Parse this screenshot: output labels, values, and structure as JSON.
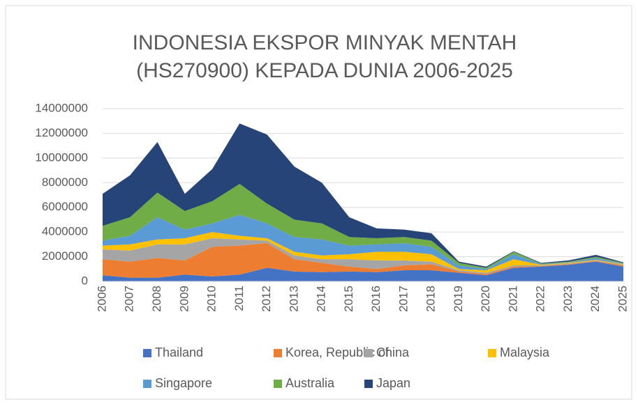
{
  "chart_data": {
    "type": "stacked_area",
    "title": [
      "INDONESIA EKSPOR MINYAK MENTAH",
      "(HS270900) KEPADA DUNIA 2006-2025"
    ],
    "categories": [
      "2006",
      "2007",
      "2008",
      "2009",
      "2010",
      "2011",
      "2012",
      "2013",
      "2014",
      "2015",
      "2016",
      "2017",
      "2018",
      "2019",
      "2020",
      "2021",
      "2022",
      "2023",
      "2024",
      "2025"
    ],
    "series": [
      {
        "name": "Thailand",
        "color": "#4472c4",
        "values": [
          500000,
          300000,
          300000,
          550000,
          400000,
          550000,
          1100000,
          800000,
          750000,
          800000,
          750000,
          900000,
          900000,
          700000,
          500000,
          1100000,
          1200000,
          1350000,
          1600000,
          1200000
        ]
      },
      {
        "name": "Korea, Republic of",
        "color": "#ed7d31",
        "values": [
          1300000,
          1300000,
          1600000,
          1150000,
          2400000,
          2350000,
          2000000,
          1000000,
          750000,
          400000,
          250000,
          400000,
          500000,
          100000,
          100000,
          100000,
          50000,
          50000,
          50000,
          100000
        ]
      },
      {
        "name": "China",
        "color": "#a5a5a5",
        "values": [
          800000,
          900000,
          1100000,
          1300000,
          700000,
          500000,
          200000,
          300000,
          300000,
          600000,
          700000,
          400000,
          200000,
          100000,
          100000,
          100000,
          50000,
          50000,
          50000,
          50000
        ]
      },
      {
        "name": "Malaysia",
        "color": "#ffc000",
        "values": [
          300000,
          500000,
          400000,
          500000,
          500000,
          300000,
          200000,
          300000,
          300000,
          400000,
          700000,
          700000,
          600000,
          100000,
          200000,
          500000,
          50000,
          50000,
          50000,
          50000
        ]
      },
      {
        "name": "Singapore",
        "color": "#5b9bd5",
        "values": [
          400000,
          700000,
          1800000,
          700000,
          700000,
          1700000,
          1200000,
          1200000,
          1300000,
          700000,
          600000,
          700000,
          600000,
          300000,
          100000,
          400000,
          50000,
          50000,
          150000,
          50000
        ]
      },
      {
        "name": "Australia",
        "color": "#70ad47",
        "values": [
          1200000,
          1500000,
          2000000,
          1500000,
          1800000,
          2500000,
          1600000,
          1400000,
          1300000,
          700000,
          500000,
          500000,
          500000,
          200000,
          100000,
          200000,
          50000,
          50000,
          100000,
          50000
        ]
      },
      {
        "name": "Japan",
        "color": "#264478",
        "values": [
          2600000,
          3400000,
          4100000,
          1400000,
          2600000,
          4900000,
          5600000,
          4300000,
          3300000,
          1600000,
          800000,
          600000,
          600000,
          100000,
          100000,
          50000,
          50000,
          100000,
          150000,
          50000
        ]
      }
    ],
    "ylim": [
      0,
      14000000
    ],
    "yticks": [
      0,
      2000000,
      4000000,
      6000000,
      8000000,
      10000000,
      12000000,
      14000000
    ],
    "grid": true,
    "legend": "bottom"
  }
}
